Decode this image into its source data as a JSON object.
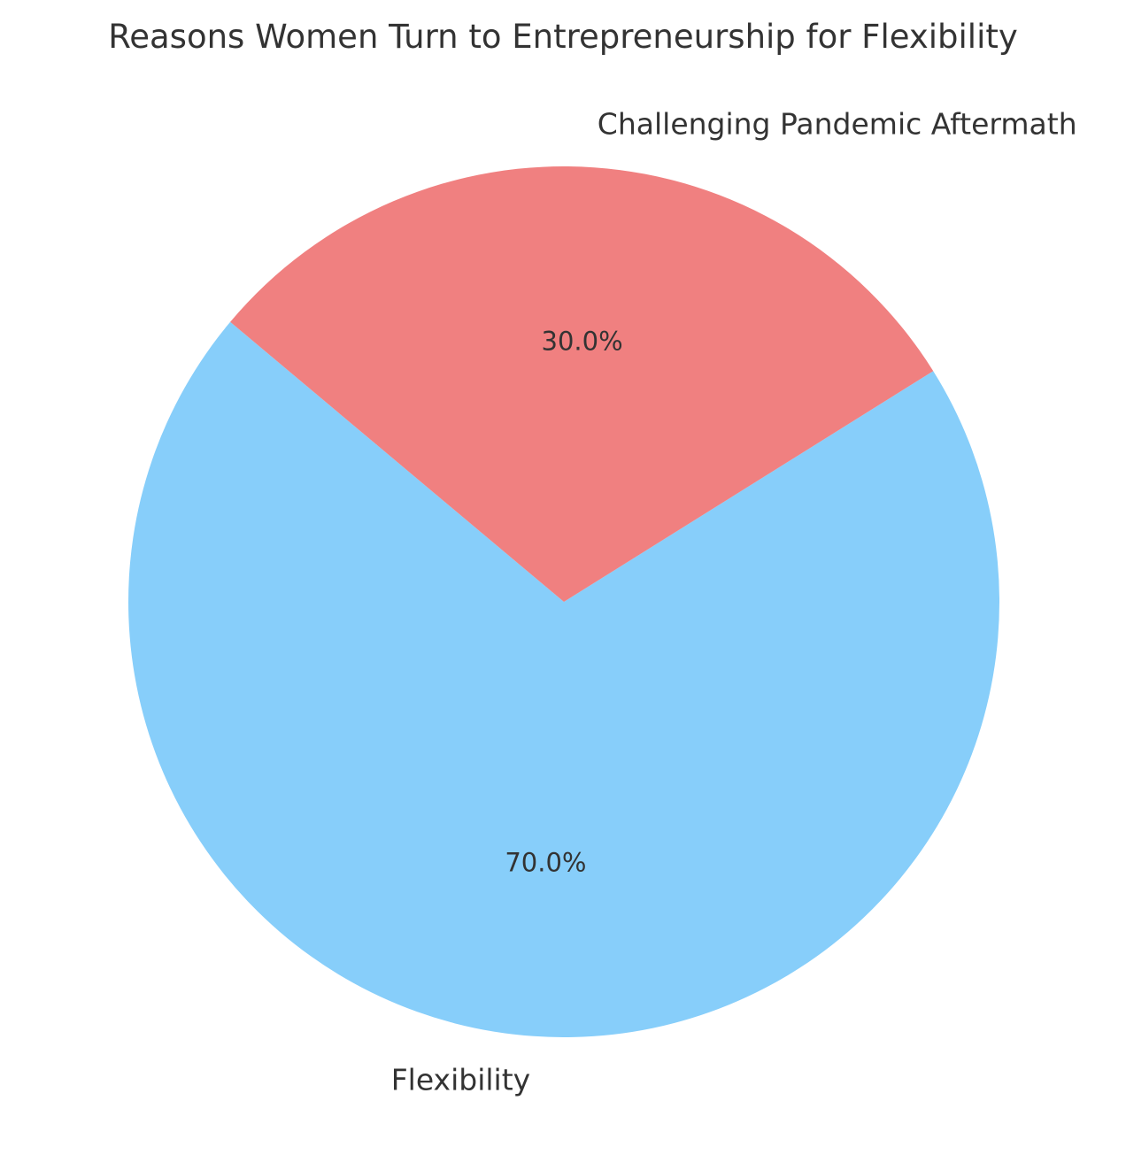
{
  "chart_data": {
    "type": "pie",
    "title": "Reasons Women Turn to Entrepreneurship for Flexibility",
    "slices": [
      {
        "label": "Flexibility",
        "value": 70,
        "pct_label": "70.0%",
        "color": "#87CEFA"
      },
      {
        "label": "Challenging Pandemic Aftermath",
        "value": 30,
        "pct_label": "30.0%",
        "color": "#F08080"
      }
    ],
    "start_angle": 140,
    "counterclock": true,
    "label_radius_ratio": 1.1,
    "pct_radius_ratio": 0.6,
    "text_color": "#333333",
    "background_color": "#FFFFFF",
    "legend_position": "none",
    "axes": "none"
  }
}
